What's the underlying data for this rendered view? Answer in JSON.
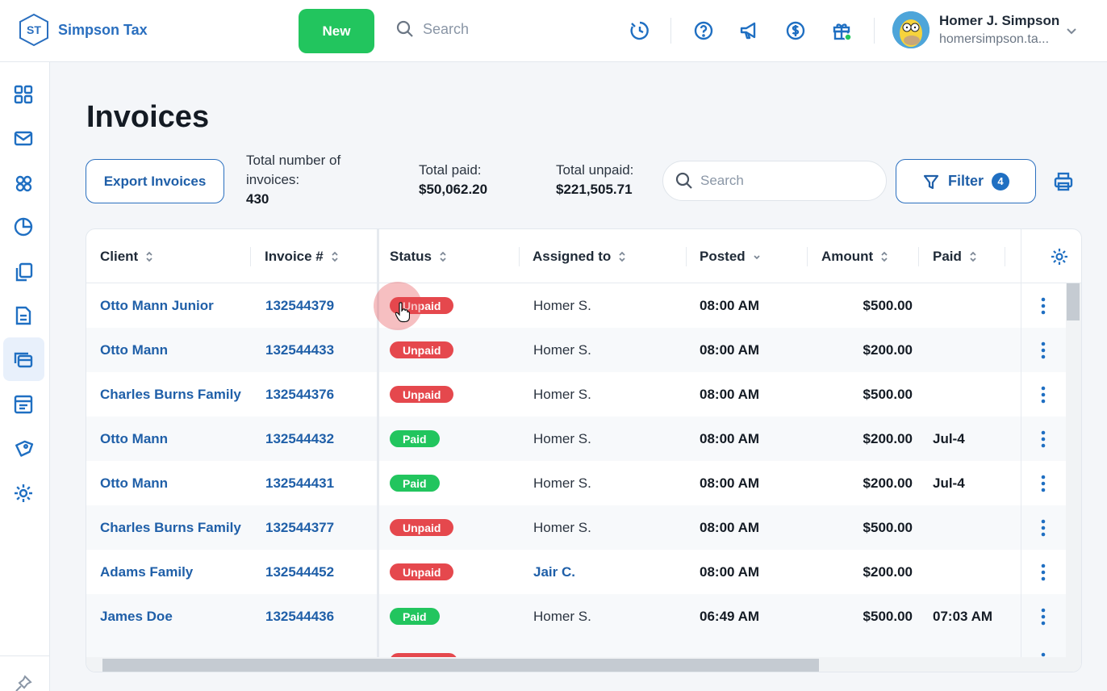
{
  "brand": {
    "logo_initials": "ST",
    "name": "Simpson Tax"
  },
  "topbar": {
    "new_label": "New",
    "search_placeholder": "Search",
    "icons": [
      "timer-icon",
      "help-icon",
      "announcement-icon",
      "billing-icon",
      "gift-icon"
    ]
  },
  "user": {
    "name": "Homer J. Simpson",
    "email": "homersimpson.ta..."
  },
  "sidebar": {
    "items": [
      "dashboard-icon",
      "inbox-icon",
      "contacts-icon",
      "insights-icon",
      "documents-icon",
      "forms-icon",
      "invoices-icon",
      "billing-icon",
      "tags-icon",
      "settings-icon"
    ],
    "active": "invoices-icon"
  },
  "page": {
    "title": "Invoices",
    "export_label": "Export Invoices",
    "total_invoices_label": "Total number of invoices:",
    "total_invoices_value": "430",
    "total_paid_label": "Total paid:",
    "total_paid_value": "$50,062.20",
    "total_unpaid_label": "Total unpaid:",
    "total_unpaid_value": "$221,505.71",
    "search_placeholder": "Search",
    "filter_label": "Filter",
    "filter_count": "4"
  },
  "table": {
    "columns": [
      "Client",
      "Invoice #",
      "Status",
      "Assigned to",
      "Posted",
      "Amount",
      "Paid"
    ],
    "rows": [
      {
        "client": "Otto Mann Junior",
        "invoice": "132544379",
        "status": "Unpaid",
        "assigned": "Homer S.",
        "posted": "08:00 AM",
        "amount": "$500.00",
        "paid": ""
      },
      {
        "client": "Otto Mann",
        "invoice": "132544433",
        "status": "Unpaid",
        "assigned": "Homer S.",
        "posted": "08:00 AM",
        "amount": "$200.00",
        "paid": ""
      },
      {
        "client": "Charles Burns Family",
        "invoice": "132544376",
        "status": "Unpaid",
        "assigned": "Homer S.",
        "posted": "08:00 AM",
        "amount": "$500.00",
        "paid": ""
      },
      {
        "client": "Otto Mann",
        "invoice": "132544432",
        "status": "Paid",
        "assigned": "Homer S.",
        "posted": "08:00 AM",
        "amount": "$200.00",
        "paid": "Jul-4"
      },
      {
        "client": "Otto Mann",
        "invoice": "132544431",
        "status": "Paid",
        "assigned": "Homer S.",
        "posted": "08:00 AM",
        "amount": "$200.00",
        "paid": "Jul-4"
      },
      {
        "client": "Charles Burns Family",
        "invoice": "132544377",
        "status": "Unpaid",
        "assigned": "Homer S.",
        "posted": "08:00 AM",
        "amount": "$500.00",
        "paid": ""
      },
      {
        "client": "Adams Family",
        "invoice": "132544452",
        "status": "Unpaid",
        "assigned": "Jair C.",
        "posted": "08:00 AM",
        "amount": "$200.00",
        "paid": ""
      },
      {
        "client": "James Doe",
        "invoice": "132544436",
        "status": "Paid",
        "assigned": "Homer S.",
        "posted": "06:49 AM",
        "amount": "$500.00",
        "paid": "07:03 AM"
      }
    ]
  },
  "colors": {
    "accent": "#1f6fc2",
    "new_button": "#22c55e",
    "unpaid": "#e5484d",
    "paid": "#22c55e"
  }
}
